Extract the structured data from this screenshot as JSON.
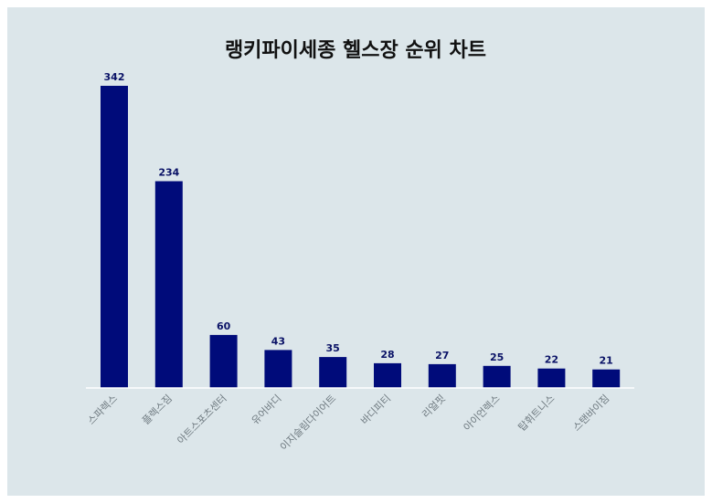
{
  "chart_data": {
    "type": "bar",
    "title": "랭키파이세종 헬스장 순위 차트",
    "xlabel": "",
    "ylabel": "",
    "categories": [
      "스파렉스",
      "플렉스짐",
      "아트스포츠센터",
      "유어바디",
      "이지슬림다이어트",
      "바디피티",
      "리얼핏",
      "아이언렉스",
      "탑휘트니스",
      "스탠바이짐"
    ],
    "values": [
      342,
      234,
      60,
      43,
      35,
      28,
      27,
      25,
      22,
      21
    ],
    "ylim": [
      0,
      342
    ],
    "grid": false,
    "legend": "none",
    "colors": {
      "bar": "#000b7a",
      "data_label": "#0a1266",
      "tick_label": "#6f7a80",
      "background": "#dce6ea",
      "baseline": "#ffffff"
    }
  }
}
